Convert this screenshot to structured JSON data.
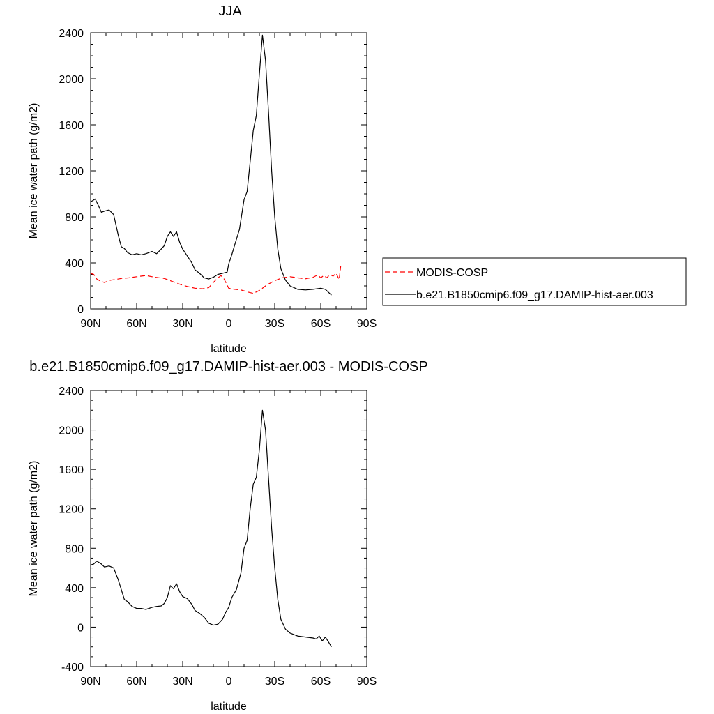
{
  "chart_data": [
    {
      "type": "line",
      "title": "JJA",
      "xlabel": "latitude",
      "ylabel": "Mean ice water path (g/m2)",
      "xlim": [
        90,
        -90
      ],
      "ylim": [
        0,
        2400
      ],
      "x_ticks": [
        90,
        60,
        30,
        0,
        -30,
        -60,
        -90
      ],
      "x_tick_labels": [
        "90N",
        "60N",
        "30N",
        "0",
        "30S",
        "60S",
        "90S"
      ],
      "y_ticks": [
        0,
        400,
        800,
        1200,
        1600,
        2000,
        2400
      ],
      "y_tick_labels": [
        "0",
        "400",
        "800",
        "1200",
        "1600",
        "2000",
        "2400"
      ],
      "legend_position": "right",
      "series": [
        {
          "name": "MODIS-COSP",
          "color": "#ff0000",
          "dash": "dashed",
          "points": [
            [
              90,
              310
            ],
            [
              88,
              300
            ],
            [
              86,
              260
            ],
            [
              84,
              245
            ],
            [
              81,
              230
            ],
            [
              77,
              250
            ],
            [
              74,
              255
            ],
            [
              70,
              265
            ],
            [
              65,
              270
            ],
            [
              60,
              280
            ],
            [
              54,
              290
            ],
            [
              48,
              275
            ],
            [
              42,
              265
            ],
            [
              37,
              240
            ],
            [
              32,
              215
            ],
            [
              27,
              195
            ],
            [
              22,
              180
            ],
            [
              17,
              175
            ],
            [
              13,
              185
            ],
            [
              10,
              230
            ],
            [
              7,
              270
            ],
            [
              5,
              290
            ],
            [
              3,
              260
            ],
            [
              0,
              180
            ],
            [
              -4,
              170
            ],
            [
              -8,
              165
            ],
            [
              -13,
              145
            ],
            [
              -16,
              135
            ],
            [
              -20,
              160
            ],
            [
              -25,
              210
            ],
            [
              -30,
              245
            ],
            [
              -35,
              270
            ],
            [
              -40,
              280
            ],
            [
              -45,
              270
            ],
            [
              -50,
              262
            ],
            [
              -55,
              275
            ],
            [
              -58,
              295
            ],
            [
              -60,
              270
            ],
            [
              -62,
              290
            ],
            [
              -64,
              270
            ],
            [
              -66,
              300
            ],
            [
              -68,
              285
            ],
            [
              -70,
              310
            ],
            [
              -72,
              255
            ],
            [
              -73,
              370
            ]
          ]
        },
        {
          "name": "b.e21.B1850cmip6.f09_g17.DAMIP-hist-aer.003",
          "color": "#000000",
          "dash": "solid",
          "points": [
            [
              90,
              930
            ],
            [
              87,
              955
            ],
            [
              85,
              900
            ],
            [
              83,
              840
            ],
            [
              81,
              850
            ],
            [
              78,
              860
            ],
            [
              75,
              820
            ],
            [
              72,
              640
            ],
            [
              70,
              540
            ],
            [
              68,
              525
            ],
            [
              66,
              490
            ],
            [
              63,
              470
            ],
            [
              60,
              480
            ],
            [
              57,
              470
            ],
            [
              54,
              480
            ],
            [
              50,
              500
            ],
            [
              47,
              480
            ],
            [
              44,
              520
            ],
            [
              42,
              550
            ],
            [
              40,
              630
            ],
            [
              38,
              670
            ],
            [
              36,
              630
            ],
            [
              34,
              670
            ],
            [
              32,
              580
            ],
            [
              30,
              520
            ],
            [
              27,
              460
            ],
            [
              24,
              400
            ],
            [
              22,
              340
            ],
            [
              19,
              310
            ],
            [
              16,
              270
            ],
            [
              13,
              260
            ],
            [
              10,
              275
            ],
            [
              7,
              300
            ],
            [
              4,
              310
            ],
            [
              1,
              320
            ],
            [
              0,
              390
            ],
            [
              -2,
              470
            ],
            [
              -4,
              560
            ],
            [
              -7,
              690
            ],
            [
              -10,
              950
            ],
            [
              -12,
              1020
            ],
            [
              -14,
              1280
            ],
            [
              -16,
              1550
            ],
            [
              -18,
              1680
            ],
            [
              -20,
              2040
            ],
            [
              -22,
              2380
            ],
            [
              -24,
              2160
            ],
            [
              -26,
              1700
            ],
            [
              -28,
              1200
            ],
            [
              -30,
              800
            ],
            [
              -32,
              520
            ],
            [
              -34,
              350
            ],
            [
              -37,
              250
            ],
            [
              -40,
              200
            ],
            [
              -45,
              170
            ],
            [
              -50,
              165
            ],
            [
              -55,
              170
            ],
            [
              -60,
              180
            ],
            [
              -63,
              170
            ],
            [
              -67,
              120
            ]
          ]
        }
      ]
    },
    {
      "type": "line",
      "title": "b.e21.B1850cmip6.f09_g17.DAMIP-hist-aer.003 - MODIS-COSP",
      "xlabel": "latitude",
      "ylabel": "Mean ice water path (g/m2)",
      "xlim": [
        90,
        -90
      ],
      "ylim": [
        -400,
        2400
      ],
      "x_ticks": [
        90,
        60,
        30,
        0,
        -30,
        -60,
        -90
      ],
      "x_tick_labels": [
        "90N",
        "60N",
        "30N",
        "0",
        "30S",
        "60S",
        "90S"
      ],
      "y_ticks": [
        -400,
        0,
        400,
        800,
        1200,
        1600,
        2000,
        2400
      ],
      "y_tick_labels": [
        "-400",
        "0",
        "400",
        "800",
        "1200",
        "1600",
        "2000",
        "2400"
      ],
      "series": [
        {
          "color": "#000000",
          "dash": "solid",
          "points": [
            [
              90,
              630
            ],
            [
              88,
              640
            ],
            [
              86,
              670
            ],
            [
              83,
              640
            ],
            [
              81,
              610
            ],
            [
              78,
              620
            ],
            [
              75,
              600
            ],
            [
              72,
              480
            ],
            [
              70,
              380
            ],
            [
              68,
              280
            ],
            [
              66,
              260
            ],
            [
              63,
              210
            ],
            [
              60,
              190
            ],
            [
              57,
              190
            ],
            [
              54,
              180
            ],
            [
              50,
              200
            ],
            [
              47,
              210
            ],
            [
              44,
              215
            ],
            [
              42,
              240
            ],
            [
              40,
              300
            ],
            [
              38,
              420
            ],
            [
              36,
              390
            ],
            [
              34,
              440
            ],
            [
              32,
              360
            ],
            [
              30,
              310
            ],
            [
              27,
              290
            ],
            [
              24,
              230
            ],
            [
              22,
              170
            ],
            [
              19,
              140
            ],
            [
              16,
              100
            ],
            [
              13,
              40
            ],
            [
              10,
              20
            ],
            [
              7,
              30
            ],
            [
              4,
              80
            ],
            [
              2,
              150
            ],
            [
              0,
              200
            ],
            [
              -2,
              300
            ],
            [
              -5,
              380
            ],
            [
              -8,
              550
            ],
            [
              -10,
              800
            ],
            [
              -12,
              880
            ],
            [
              -14,
              1200
            ],
            [
              -16,
              1450
            ],
            [
              -18,
              1520
            ],
            [
              -20,
              1800
            ],
            [
              -22,
              2200
            ],
            [
              -24,
              2000
            ],
            [
              -26,
              1500
            ],
            [
              -28,
              1000
            ],
            [
              -30,
              600
            ],
            [
              -32,
              280
            ],
            [
              -34,
              80
            ],
            [
              -37,
              -20
            ],
            [
              -40,
              -60
            ],
            [
              -45,
              -90
            ],
            [
              -50,
              -100
            ],
            [
              -55,
              -110
            ],
            [
              -57,
              -120
            ],
            [
              -59,
              -90
            ],
            [
              -61,
              -140
            ],
            [
              -63,
              -100
            ],
            [
              -65,
              -150
            ],
            [
              -67,
              -200
            ]
          ]
        }
      ]
    }
  ]
}
